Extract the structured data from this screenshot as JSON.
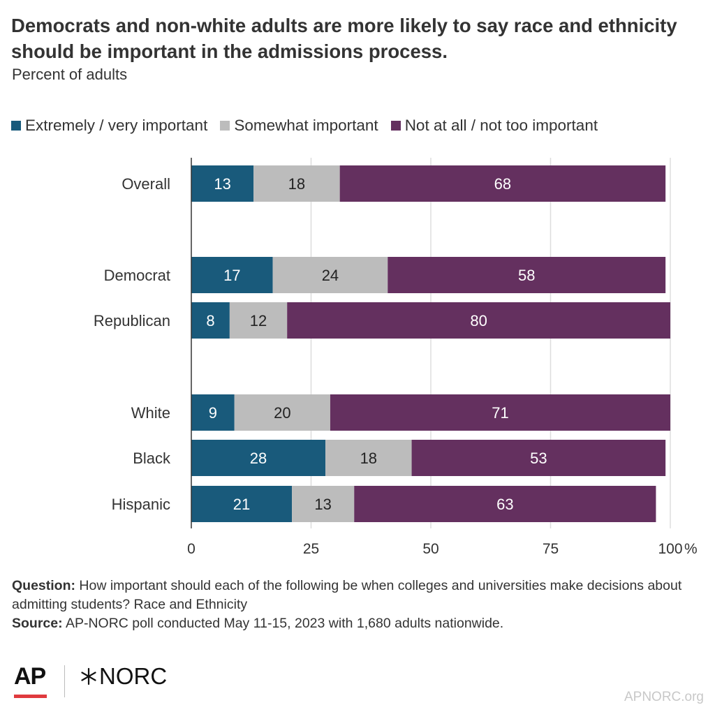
{
  "title": "Democrats and non-white adults are more likely to say race and ethnicity should be important in the admissions process.",
  "subtitle": "Percent of adults",
  "legend": [
    {
      "label": "Extremely / very important",
      "color": "#195a7b"
    },
    {
      "label": "Somewhat important",
      "color": "#bcbcbc"
    },
    {
      "label": "Not at all / not too important",
      "color": "#64305f"
    }
  ],
  "chart_data": {
    "type": "bar",
    "orientation": "horizontal",
    "stacked": true,
    "categories": [
      "Overall",
      "Democrat",
      "Republican",
      "White",
      "Black",
      "Hispanic"
    ],
    "series": [
      {
        "name": "Extremely / very important",
        "values": [
          13,
          17,
          8,
          9,
          28,
          21
        ]
      },
      {
        "name": "Somewhat important",
        "values": [
          18,
          24,
          12,
          20,
          18,
          13
        ]
      },
      {
        "name": "Not at all / not too important",
        "values": [
          68,
          58,
          80,
          71,
          53,
          63
        ]
      }
    ],
    "xlim": [
      0,
      100
    ],
    "xticks": [
      "0",
      "25",
      "50",
      "75",
      "100"
    ],
    "x_unit": "%",
    "grid": true,
    "legend_position": "top"
  },
  "footer": {
    "question_label": "Question:",
    "question_text": "How important should each of the following be when colleges and universities make decisions about admitting students? Race and Ethnicity",
    "source_label": "Source:",
    "source_text": "AP-NORC poll conducted May 11-15, 2023 with 1,680 adults nationwide."
  },
  "branding": {
    "ap_logo": "AP",
    "norc_logo": "NORC",
    "site": "APNORC.org"
  }
}
